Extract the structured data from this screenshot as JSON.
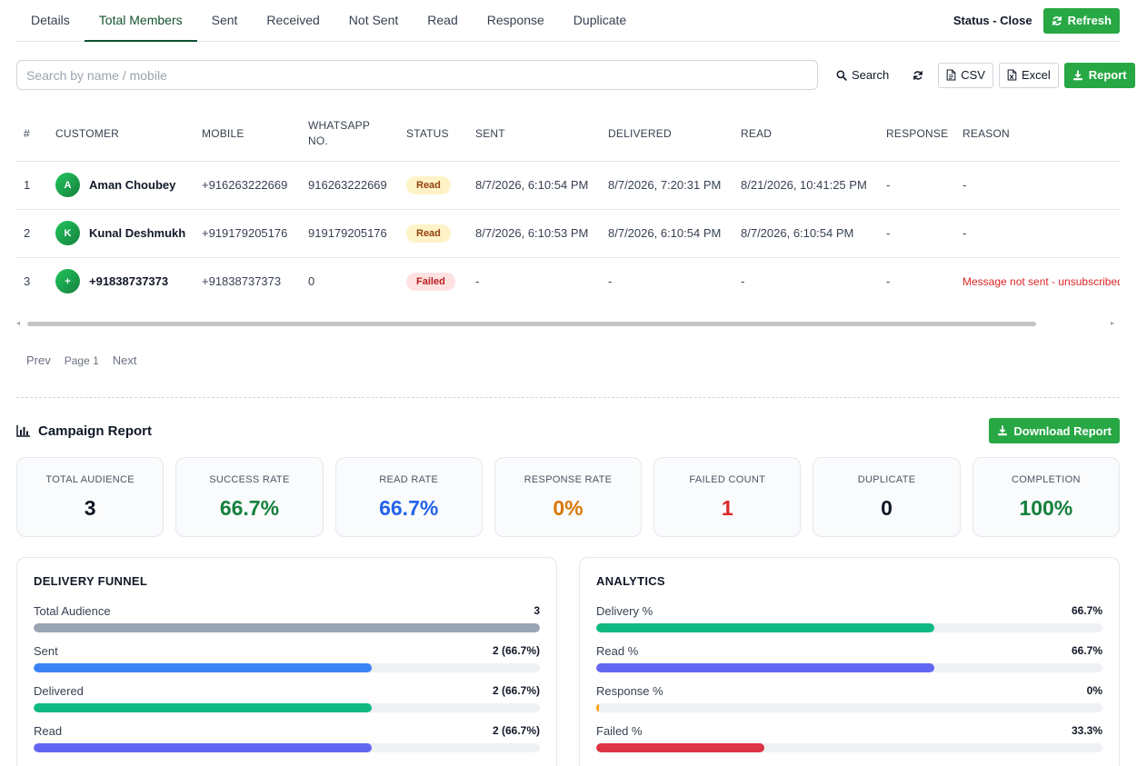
{
  "tabs": [
    {
      "label": "Details",
      "active": false
    },
    {
      "label": "Total Members",
      "active": true
    },
    {
      "label": "Sent",
      "active": false
    },
    {
      "label": "Received",
      "active": false
    },
    {
      "label": "Not Sent",
      "active": false
    },
    {
      "label": "Read",
      "active": false
    },
    {
      "label": "Response",
      "active": false
    },
    {
      "label": "Duplicate",
      "active": false
    }
  ],
  "header": {
    "status_label": "Status - Close",
    "refresh_label": "Refresh"
  },
  "search": {
    "placeholder": "Search by name / mobile",
    "value": "",
    "search_label": "Search",
    "csv_label": "CSV",
    "excel_label": "Excel",
    "report_label": "Report"
  },
  "table": {
    "columns": [
      "#",
      "CUSTOMER",
      "MOBILE",
      "WHATSAPP NO.",
      "STATUS",
      "SENT",
      "DELIVERED",
      "READ",
      "RESPONSE",
      "REASON"
    ],
    "rows": [
      {
        "num": "1",
        "avatar": "A",
        "customer": "Aman Choubey",
        "mobile": "+916263222669",
        "whatsapp": "916263222669",
        "status": "Read",
        "status_kind": "read",
        "sent": "8/7/2026, 6:10:54 PM",
        "delivered": "8/7/2026, 7:20:31 PM",
        "read": "8/21/2026, 10:41:25 PM",
        "response": "-",
        "reason": "-"
      },
      {
        "num": "2",
        "avatar": "K",
        "customer": "Kunal Deshmukh",
        "mobile": "+919179205176",
        "whatsapp": "919179205176",
        "status": "Read",
        "status_kind": "read",
        "sent": "8/7/2026, 6:10:53 PM",
        "delivered": "8/7/2026, 6:10:54 PM",
        "read": "8/7/2026, 6:10:54 PM",
        "response": "-",
        "reason": "-"
      },
      {
        "num": "3",
        "avatar": "+",
        "customer": "+91838737373",
        "mobile": "+91838737373",
        "whatsapp": "0",
        "status": "Failed",
        "status_kind": "failed",
        "sent": "-",
        "delivered": "-",
        "read": "-",
        "response": "-",
        "reason": "Message not sent - unsubscribed"
      }
    ]
  },
  "pager": {
    "prev": "Prev",
    "page": "Page 1",
    "next": "Next"
  },
  "report": {
    "title": "Campaign Report",
    "download_label": "Download Report",
    "stats": [
      {
        "label": "TOTAL AUDIENCE",
        "value": "3",
        "color": "#111827"
      },
      {
        "label": "SUCCESS RATE",
        "value": "66.7%",
        "color": "#15803d"
      },
      {
        "label": "READ RATE",
        "value": "66.7%",
        "color": "#2563eb"
      },
      {
        "label": "RESPONSE RATE",
        "value": "0%",
        "color": "#d97706"
      },
      {
        "label": "FAILED COUNT",
        "value": "1",
        "color": "#dc2626"
      },
      {
        "label": "DUPLICATE",
        "value": "0",
        "color": "#111827"
      },
      {
        "label": "COMPLETION",
        "value": "100%",
        "color": "#15803d"
      }
    ]
  },
  "funnel": {
    "title": "DELIVERY FUNNEL",
    "items": [
      {
        "label": "Total Audience",
        "value": "3",
        "percent": 100,
        "color": "#9aa5b4"
      },
      {
        "label": "Sent",
        "value": "2 (66.7%)",
        "percent": 66.7,
        "color": "#3b82f6"
      },
      {
        "label": "Delivered",
        "value": "2 (66.7%)",
        "percent": 66.7,
        "color": "#10b981"
      },
      {
        "label": "Read",
        "value": "2 (66.7%)",
        "percent": 66.7,
        "color": "#6366f1"
      }
    ]
  },
  "analytics": {
    "title": "ANALYTICS",
    "items": [
      {
        "label": "Delivery %",
        "value": "66.7%",
        "percent": 66.7,
        "color": "#10b981"
      },
      {
        "label": "Read %",
        "value": "66.7%",
        "percent": 66.7,
        "color": "#6366f1"
      },
      {
        "label": "Response %",
        "value": "0%",
        "percent": 0,
        "color": "#f59e0b"
      },
      {
        "label": "Failed %",
        "value": "33.3%",
        "percent": 33.3,
        "color": "#dc3545"
      }
    ]
  }
}
